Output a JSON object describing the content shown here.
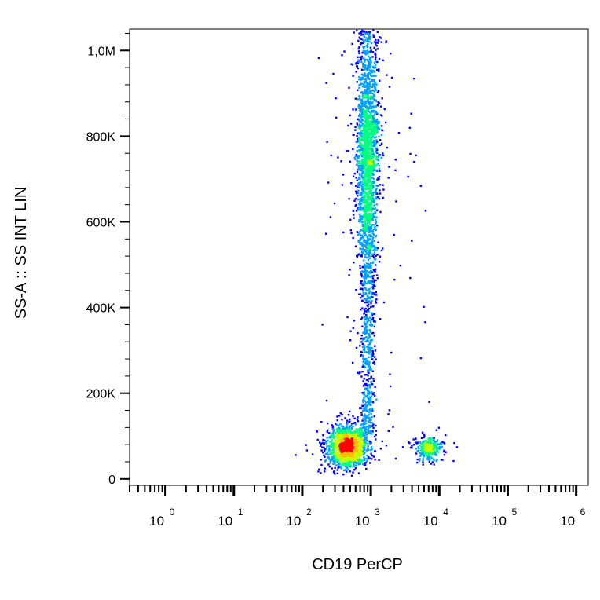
{
  "chart_data": {
    "type": "scatter",
    "subtype": "density-dot-plot",
    "title": "",
    "xlabel": "CD19 PerCP",
    "ylabel": "SS-A :: SS INT LIN",
    "xscale": "log",
    "yscale": "linear",
    "xlim": [
      0.3,
      1500000
    ],
    "ylim": [
      -15000,
      1050000
    ],
    "grid": false,
    "legend": "none",
    "x_ticks": [
      {
        "value": 1,
        "base": "10",
        "exp": "0"
      },
      {
        "value": 10,
        "base": "10",
        "exp": "1"
      },
      {
        "value": 100,
        "base": "10",
        "exp": "2"
      },
      {
        "value": 1000,
        "base": "10",
        "exp": "3"
      },
      {
        "value": 10000,
        "base": "10",
        "exp": "4"
      },
      {
        "value": 100000,
        "base": "10",
        "exp": "5"
      },
      {
        "value": 1000000,
        "base": "10",
        "exp": "6"
      }
    ],
    "y_ticks": [
      {
        "value": 0,
        "label": "0"
      },
      {
        "value": 200000,
        "label": "200K"
      },
      {
        "value": 400000,
        "label": "400K"
      },
      {
        "value": 600000,
        "label": "600K"
      },
      {
        "value": 800000,
        "label": "800K"
      },
      {
        "value": 1000000,
        "label": "1,0M"
      }
    ],
    "populations": [
      {
        "name_visible": false,
        "shape": "column",
        "x_center": 900,
        "x_spread_decades": 0.08,
        "y_range": [
          100000,
          1050000
        ],
        "y_peak": 750000,
        "relative_density": 1.0
      },
      {
        "name_visible": false,
        "shape": "cluster",
        "x_center": 450,
        "x_spread_decades": 0.14,
        "y_center": 75000,
        "y_spread": 25000,
        "relative_density": 0.55
      },
      {
        "name_visible": false,
        "shape": "cluster",
        "x_center": 7000,
        "x_spread_decades": 0.1,
        "y_center": 70000,
        "y_spread": 14000,
        "relative_density": 0.12
      }
    ],
    "colormap": [
      "#0000ff",
      "#00a0ff",
      "#00ff80",
      "#c0ff00",
      "#ffc000",
      "#ff0000"
    ]
  }
}
